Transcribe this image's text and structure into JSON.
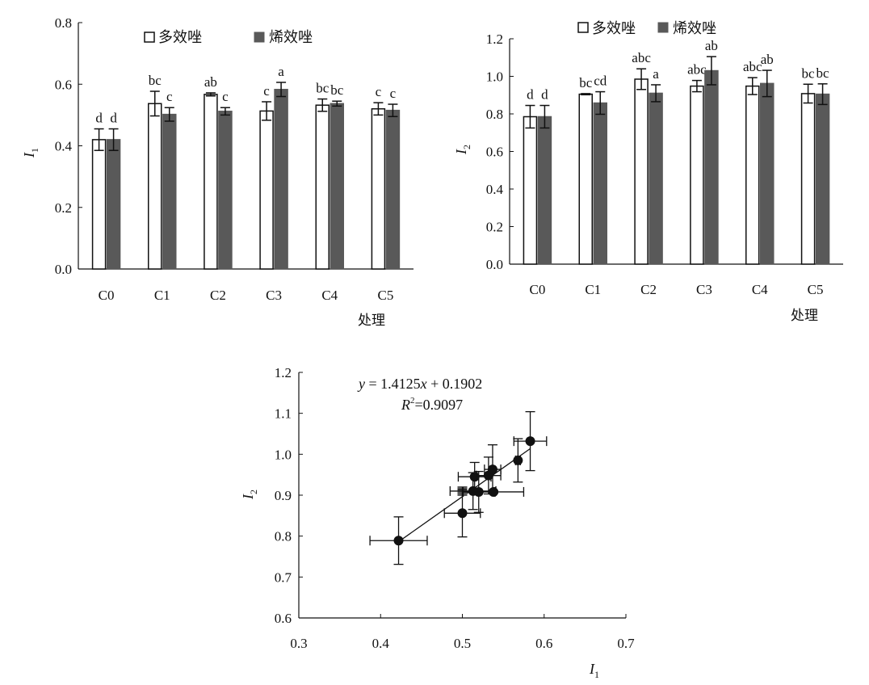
{
  "chart_data": [
    {
      "type": "bar",
      "ylabel": "I",
      "ylabel_sub": "1",
      "xlabel": "处理",
      "categories": [
        "C0",
        "C1",
        "C2",
        "C3",
        "C4",
        "C5"
      ],
      "ylim": [
        0,
        0.8
      ],
      "yticks": [
        "0.0",
        "0.2",
        "0.4",
        "0.6",
        "0.8"
      ],
      "legend_position": "top",
      "series": [
        {
          "name": "多效唑",
          "color": "#ffffff",
          "values": [
            0.42,
            0.537,
            0.567,
            0.513,
            0.532,
            0.52
          ],
          "errors": [
            0.035,
            0.04,
            0.005,
            0.03,
            0.02,
            0.02
          ],
          "letters": [
            "d",
            "bc",
            "ab",
            "c",
            "bc",
            "c"
          ]
        },
        {
          "name": "烯效唑",
          "color": "#595959",
          "values": [
            0.42,
            0.502,
            0.512,
            0.583,
            0.537,
            0.515
          ],
          "errors": [
            0.035,
            0.022,
            0.012,
            0.023,
            0.008,
            0.02
          ],
          "letters": [
            "d",
            "c",
            "c",
            "a",
            "bc",
            "c"
          ]
        }
      ]
    },
    {
      "type": "bar",
      "ylabel": "I",
      "ylabel_sub": "2",
      "xlabel": "处理",
      "categories": [
        "C0",
        "C1",
        "C2",
        "C3",
        "C4",
        "C5"
      ],
      "ylim": [
        0,
        1.2
      ],
      "yticks": [
        "0.0",
        "0.2",
        "0.4",
        "0.6",
        "0.8",
        "1.0",
        "1.2"
      ],
      "legend_position": "top",
      "series": [
        {
          "name": "多效唑",
          "color": "#ffffff",
          "values": [
            0.785,
            0.905,
            0.985,
            0.948,
            0.948,
            0.908
          ],
          "errors": [
            0.06,
            0.003,
            0.055,
            0.03,
            0.045,
            0.05
          ],
          "letters": [
            "d",
            "bc",
            "abc",
            "abc",
            "abc",
            "bc"
          ]
        },
        {
          "name": "烯效唑",
          "color": "#595959",
          "values": [
            0.785,
            0.858,
            0.91,
            1.03,
            0.962,
            0.905
          ],
          "errors": [
            0.06,
            0.06,
            0.045,
            0.075,
            0.07,
            0.055
          ],
          "letters": [
            "d",
            "cd",
            "a",
            "ab",
            "ab",
            "bc"
          ]
        }
      ]
    },
    {
      "type": "scatter",
      "xlabel": "I",
      "xlabel_sub": "1",
      "ylabel": "I",
      "ylabel_sub": "2",
      "xlim": [
        0.3,
        0.7
      ],
      "ylim": [
        0.6,
        1.2
      ],
      "xticks": [
        "0.3",
        "0.4",
        "0.5",
        "0.6",
        "0.7"
      ],
      "yticks": [
        "0.6",
        "0.7",
        "0.8",
        "0.9",
        "1.0",
        "1.1",
        "1.2"
      ],
      "equation": {
        "y": "y",
        "eq": " = 1.4125",
        "x": "x",
        "rest": " + 0.1902"
      },
      "r2": {
        "r": "R",
        "sup": "2",
        "value": "=0.9097"
      },
      "trendline": {
        "slope": 1.4125,
        "intercept": 0.1902
      },
      "points": [
        {
          "x": 0.422,
          "y": 0.789,
          "xerr": 0.035,
          "yerr": 0.058
        },
        {
          "x": 0.5,
          "y": 0.856,
          "xerr": 0.022,
          "yerr": 0.058
        },
        {
          "x": 0.513,
          "y": 0.91,
          "xerr": 0.028,
          "yerr": 0.045
        },
        {
          "x": 0.515,
          "y": 0.945,
          "xerr": 0.02,
          "yerr": 0.035
        },
        {
          "x": 0.52,
          "y": 0.908,
          "xerr": 0.02,
          "yerr": 0.05
        },
        {
          "x": 0.532,
          "y": 0.948,
          "xerr": 0.015,
          "yerr": 0.045
        },
        {
          "x": 0.537,
          "y": 0.963,
          "xerr": 0.01,
          "yerr": 0.06
        },
        {
          "x": 0.538,
          "y": 0.908,
          "xerr": 0.037,
          "yerr": 0.003
        },
        {
          "x": 0.568,
          "y": 0.985,
          "xerr": 0.003,
          "yerr": 0.053
        },
        {
          "x": 0.583,
          "y": 1.032,
          "xerr": 0.02,
          "yerr": 0.072
        }
      ]
    }
  ]
}
